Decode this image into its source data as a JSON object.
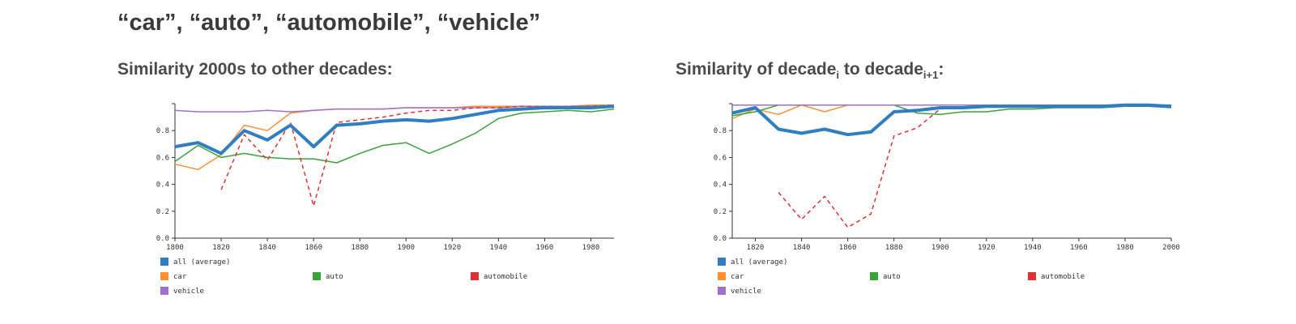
{
  "headline": "“car”, “auto”, “automobile”, “vehicle”",
  "panels": {
    "left": {
      "subtitle": "Similarity 2000s to other decades:"
    },
    "right": {
      "subtitle_main": "Similarity of decade",
      "subtitle_sub_i": "i",
      "subtitle_mid": " to decade",
      "subtitle_sub_i1": "i+1",
      "subtitle_end": ":"
    }
  },
  "chart_data": [
    {
      "type": "line",
      "title": "Similarity 2000s to other decades:",
      "xlim": [
        1800,
        1990
      ],
      "ylim": [
        0,
        1
      ],
      "xticks": [
        1800,
        1820,
        1840,
        1860,
        1880,
        1900,
        1920,
        1940,
        1960,
        1980
      ],
      "yticks": [
        0,
        0.2,
        0.4,
        0.6,
        0.8
      ],
      "tick_labels_x": [
        "1800",
        "1820",
        "1840",
        "1860",
        "1880",
        "1900",
        "1920",
        "1940",
        "1960",
        "1980"
      ],
      "tick_labels_y": [
        "0.0",
        "0.2",
        "0.4",
        "0.6",
        "0.8"
      ],
      "legend": [
        "all (average)",
        "car",
        "auto",
        "automobile",
        "vehicle"
      ],
      "series": [
        {
          "name": "all (average)",
          "color": "#2f7ec2",
          "width": 4,
          "dash": false,
          "x": [
            1800,
            1810,
            1820,
            1830,
            1840,
            1850,
            1860,
            1870,
            1880,
            1890,
            1900,
            1910,
            1920,
            1930,
            1940,
            1950,
            1960,
            1970,
            1980,
            1990
          ],
          "y": [
            0.68,
            0.71,
            0.63,
            0.8,
            0.73,
            0.84,
            0.68,
            0.84,
            0.85,
            0.87,
            0.88,
            0.87,
            0.89,
            0.92,
            0.95,
            0.96,
            0.97,
            0.97,
            0.97,
            0.98
          ]
        },
        {
          "name": "car",
          "color": "#ff9030",
          "width": 1.5,
          "dash": false,
          "x": [
            1800,
            1810,
            1820,
            1830,
            1840,
            1850,
            1860,
            1870,
            1880,
            1890,
            1900,
            1910,
            1920,
            1930,
            1940,
            1950,
            1960,
            1970,
            1980,
            1990
          ],
          "y": [
            0.55,
            0.51,
            0.62,
            0.84,
            0.8,
            0.93,
            0.95,
            0.96,
            0.96,
            0.96,
            0.97,
            0.97,
            0.97,
            0.98,
            0.98,
            0.98,
            0.98,
            0.98,
            0.99,
            0.99
          ]
        },
        {
          "name": "auto",
          "color": "#3aa33a",
          "width": 1.5,
          "dash": false,
          "x": [
            1800,
            1810,
            1820,
            1830,
            1840,
            1850,
            1860,
            1870,
            1880,
            1890,
            1900,
            1910,
            1920,
            1930,
            1940,
            1950,
            1960,
            1970,
            1980,
            1990
          ],
          "y": [
            0.57,
            0.69,
            0.6,
            0.63,
            0.6,
            0.59,
            0.59,
            0.56,
            0.63,
            0.69,
            0.71,
            0.63,
            0.7,
            0.78,
            0.89,
            0.93,
            0.94,
            0.95,
            0.94,
            0.96
          ]
        },
        {
          "name": "automobile",
          "color": "#e03030",
          "width": 1.5,
          "dash": true,
          "x": [
            1820,
            1830,
            1840,
            1850,
            1860,
            1870,
            1880,
            1890,
            1900,
            1910,
            1920,
            1930,
            1940,
            1950,
            1960,
            1970,
            1980,
            1990
          ],
          "y": [
            0.36,
            0.77,
            0.58,
            0.86,
            0.24,
            0.86,
            0.88,
            0.9,
            0.93,
            0.95,
            0.95,
            0.97,
            0.97,
            0.98,
            0.98,
            0.98,
            0.98,
            0.99
          ]
        },
        {
          "name": "vehicle",
          "color": "#a070d0",
          "width": 1.5,
          "dash": false,
          "x": [
            1800,
            1810,
            1820,
            1830,
            1840,
            1850,
            1860,
            1870,
            1880,
            1890,
            1900,
            1910,
            1920,
            1930,
            1940,
            1950,
            1960,
            1970,
            1980,
            1990
          ],
          "y": [
            0.95,
            0.94,
            0.94,
            0.94,
            0.95,
            0.94,
            0.95,
            0.96,
            0.96,
            0.96,
            0.97,
            0.97,
            0.97,
            0.97,
            0.97,
            0.98,
            0.98,
            0.98,
            0.98,
            0.98
          ]
        }
      ]
    },
    {
      "type": "line",
      "title": "Similarity of decade_i to decade_i+1:",
      "xlim": [
        1810,
        2000
      ],
      "ylim": [
        0,
        1
      ],
      "xticks": [
        1820,
        1840,
        1860,
        1880,
        1900,
        1920,
        1940,
        1960,
        1980,
        2000
      ],
      "yticks": [
        0,
        0.2,
        0.4,
        0.6,
        0.8
      ],
      "tick_labels_x": [
        "1820",
        "1840",
        "1860",
        "1880",
        "1900",
        "1920",
        "1940",
        "1960",
        "1980",
        "2000"
      ],
      "tick_labels_y": [
        "0.0",
        "0.2",
        "0.4",
        "0.6",
        "0.8"
      ],
      "legend": [
        "all (average)",
        "car",
        "auto",
        "automobile",
        "vehicle"
      ],
      "series": [
        {
          "name": "all (average)",
          "color": "#2f7ec2",
          "width": 4,
          "dash": false,
          "x": [
            1810,
            1820,
            1830,
            1840,
            1850,
            1860,
            1870,
            1880,
            1890,
            1900,
            1910,
            1920,
            1930,
            1940,
            1950,
            1960,
            1970,
            1980,
            1990,
            2000
          ],
          "y": [
            0.93,
            0.97,
            0.81,
            0.78,
            0.81,
            0.77,
            0.79,
            0.94,
            0.95,
            0.97,
            0.97,
            0.98,
            0.98,
            0.98,
            0.98,
            0.98,
            0.98,
            0.99,
            0.99,
            0.98
          ]
        },
        {
          "name": "car",
          "color": "#ff9030",
          "width": 1.5,
          "dash": false,
          "x": [
            1810,
            1820,
            1830,
            1840,
            1850,
            1860,
            1870,
            1880,
            1890,
            1900,
            1910,
            1920,
            1930,
            1940,
            1950,
            1960,
            1970,
            1980,
            1990,
            2000
          ],
          "y": [
            0.89,
            0.96,
            0.92,
            0.99,
            0.94,
            0.99,
            0.99,
            0.99,
            0.99,
            0.99,
            0.99,
            0.99,
            0.99,
            0.99,
            0.99,
            0.99,
            0.99,
            0.99,
            0.99,
            0.99
          ]
        },
        {
          "name": "auto",
          "color": "#3aa33a",
          "width": 1.5,
          "dash": false,
          "x": [
            1810,
            1820,
            1830,
            1840,
            1850,
            1860,
            1870,
            1880,
            1890,
            1900,
            1910,
            1920,
            1930,
            1940,
            1950,
            1960,
            1970,
            1980,
            1990,
            2000
          ],
          "y": [
            0.91,
            0.94,
            0.99,
            0.99,
            0.99,
            0.99,
            0.99,
            0.99,
            0.93,
            0.92,
            0.94,
            0.94,
            0.96,
            0.96,
            0.97,
            0.97,
            0.97,
            0.98,
            0.98,
            0.97
          ]
        },
        {
          "name": "automobile",
          "color": "#e03030",
          "width": 1.5,
          "dash": true,
          "x": [
            1830,
            1840,
            1850,
            1860,
            1870,
            1880,
            1890,
            1900,
            1910,
            1920,
            1930,
            1940,
            1950,
            1960,
            1970,
            1980,
            1990,
            2000
          ],
          "y": [
            0.34,
            0.14,
            0.31,
            0.08,
            0.18,
            0.76,
            0.82,
            0.96,
            0.97,
            0.98,
            0.98,
            0.98,
            0.98,
            0.98,
            0.98,
            0.99,
            0.99,
            0.99
          ]
        },
        {
          "name": "vehicle",
          "color": "#a070d0",
          "width": 1.5,
          "dash": false,
          "x": [
            1810,
            1820,
            1830,
            1840,
            1850,
            1860,
            1870,
            1880,
            1890,
            1900,
            1910,
            1920,
            1930,
            1940,
            1950,
            1960,
            1970,
            1980,
            1990,
            2000
          ],
          "y": [
            0.99,
            0.99,
            0.99,
            0.99,
            0.99,
            0.99,
            0.99,
            0.99,
            0.99,
            0.99,
            0.99,
            0.99,
            0.99,
            0.99,
            0.99,
            0.99,
            0.99,
            0.99,
            0.99,
            0.99
          ]
        }
      ]
    }
  ]
}
